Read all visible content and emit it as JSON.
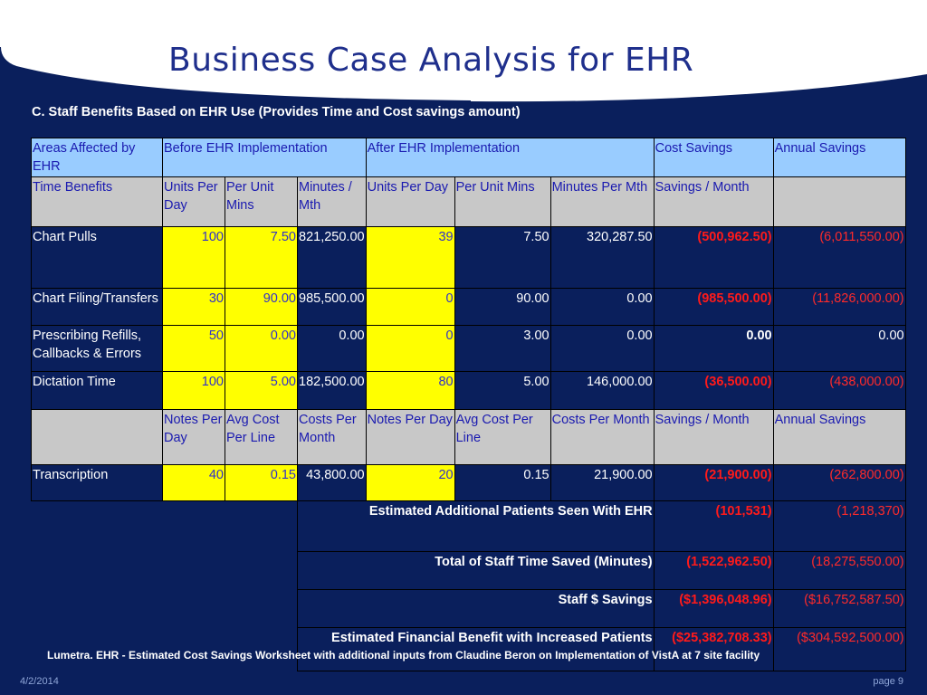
{
  "title": "Business Case Analysis for EHR",
  "subtitle": "C. Staff Benefits Based on EHR Use (Provides Time and Cost savings amount)",
  "header": {
    "areas": "Areas Affected by EHR",
    "before": "Before EHR Implementation",
    "after": "After EHR Implementation",
    "cost_savings": "Cost Savings",
    "annual_savings": "Annual Savings"
  },
  "subheader": {
    "time_benefits": "Time Benefits",
    "units_per_day": "Units Per Day",
    "per_unit_mins": "Per Unit Mins",
    "minutes_mth": "Minutes / Mth",
    "after_units_per_day": "Units Per Day",
    "after_per_unit_mins": "Per Unit Mins",
    "after_minutes_per_mth": "Minutes Per Mth",
    "savings_month": "Savings / Month"
  },
  "rows": [
    {
      "area": "Chart Pulls",
      "units": "100",
      "mins": "7.50",
      "mth": "821,250.00",
      "a_units": "39",
      "a_mins": "7.50",
      "a_mth": "320,287.50",
      "savings": "(500,962.50)",
      "annual": "(6,011,550.00)"
    },
    {
      "area": "Chart Filing/Transfers",
      "units": "30",
      "mins": "90.00",
      "mth": "985,500.00",
      "a_units": "0",
      "a_mins": "90.00",
      "a_mth": "0.00",
      "savings": "(985,500.00)",
      "annual": "(11,826,000.00)"
    },
    {
      "area": "Prescribing Refills, Callbacks & Errors",
      "units": "50",
      "mins": "0.00",
      "mth": "0.00",
      "a_units": "0",
      "a_mins": "3.00",
      "a_mth": "0.00",
      "savings": "0.00",
      "annual": "0.00"
    },
    {
      "area": "Dictation Time",
      "units": "100",
      "mins": "5.00",
      "mth": "182,500.00",
      "a_units": "80",
      "a_mins": "5.00",
      "a_mth": "146,000.00",
      "savings": "(36,500.00)",
      "annual": "(438,000.00)"
    }
  ],
  "subheader2": {
    "notes_per_day": "Notes Per Day",
    "avg_cost_per_line": "Avg Cost Per Line",
    "costs_per_month": "Costs Per Month",
    "after_notes_per_day": "Notes Per Day",
    "after_avg_cost": "Avg Cost Per Line",
    "after_costs_per_month": "Costs Per Month",
    "savings_month": "Savings / Month",
    "annual_savings": "Annual Savings"
  },
  "transcription": {
    "area": "Transcription",
    "notes": "40",
    "cost": "0.15",
    "month": "43,800.00",
    "a_notes": "20",
    "a_cost": "0.15",
    "a_month": "21,900.00",
    "savings": "(21,900.00)",
    "annual": "(262,800.00)"
  },
  "summary": [
    {
      "label": "Estimated Additional Patients Seen With EHR",
      "savings": "(101,531)",
      "annual": "(1,218,370)"
    },
    {
      "label": "Total of Staff Time Saved (Minutes)",
      "savings": "(1,522,962.50)",
      "annual": "(18,275,550.00)"
    },
    {
      "label": "Staff $ Savings",
      "savings": "($1,396,048.96)",
      "annual": "($16,752,587.50)"
    },
    {
      "label": "Estimated Financial Benefit with Increased Patients",
      "savings": "($25,382,708.33)",
      "annual": "($304,592,500.00)"
    }
  ],
  "footnote": "Lumetra. EHR - Estimated Cost Savings Worksheet with additional inputs from Claudine Beron on Implementation of VistA at 7 site facility",
  "date": "4/2/2014",
  "page": "page 9"
}
